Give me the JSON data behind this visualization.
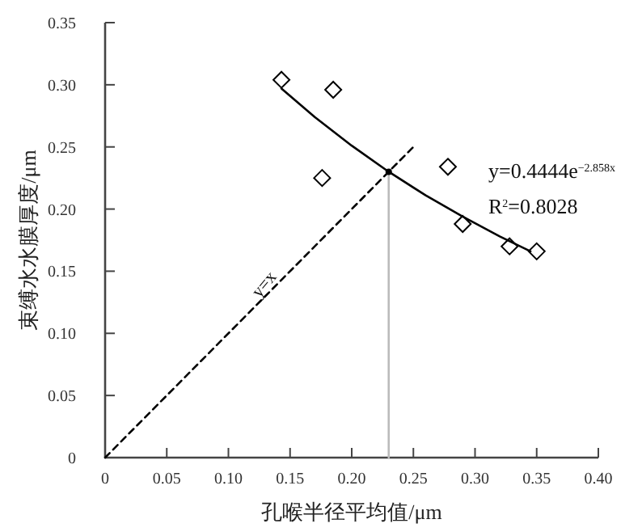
{
  "chart_data": {
    "type": "scatter",
    "xlabel": "孔喉半径平均值/μm",
    "ylabel": "束缚水水膜厚度/μm",
    "xlim": [
      0,
      0.4
    ],
    "xticks": [
      0,
      0.05,
      {
        "value": 0.1,
        "label": "0.10"
      },
      0.15,
      {
        "value": 0.2,
        "label": "0.20"
      },
      0.25,
      {
        "value": 0.3,
        "label": "0.30"
      },
      0.35,
      {
        "value": 0.4,
        "label": "0.40"
      }
    ],
    "ylim": [
      0,
      0.35
    ],
    "yticks": [
      0,
      0.05,
      {
        "value": 0.1,
        "label": "0.10"
      },
      0.15,
      {
        "value": 0.2,
        "label": "0.20"
      },
      0.25,
      {
        "value": 0.3,
        "label": "0.30"
      },
      0.35
    ],
    "grid": false,
    "series": [
      {
        "marker": "diamond",
        "color": "#000000",
        "x": [
          0.143,
          0.176,
          0.185,
          0.278,
          0.29,
          0.328,
          0.35
        ],
        "values": [
          0.304,
          0.225,
          0.296,
          0.234,
          0.188,
          0.17,
          0.166
        ]
      },
      {
        "type": "line",
        "line_style": "solid",
        "color": "#000000",
        "x": [
          0.143,
          0.17,
          0.2,
          0.23,
          0.26,
          0.29,
          0.32,
          0.345
        ],
        "values": [
          0.297,
          0.274,
          0.251,
          0.23,
          0.211,
          0.194,
          0.178,
          0.166
        ]
      },
      {
        "type": "line",
        "line_style": "dashed",
        "color": "#000000",
        "x": [
          0,
          0.25
        ],
        "values": [
          0,
          0.25
        ]
      },
      {
        "type": "line",
        "line_style": "solid",
        "color": "#bbbbbb",
        "x": [
          0.23,
          0.23
        ],
        "values": [
          0.23,
          0
        ]
      },
      {
        "type": "scatter",
        "marker": "circle",
        "color": "#000000",
        "x": [
          0.23
        ],
        "values": [
          0.23
        ]
      }
    ],
    "annotations": [
      {
        "text": "y=x",
        "x": 0.125,
        "y": 0.128
      },
      "y=0.4444e$^{−2.858x}$",
      "R$^{2}$=0.8028"
    ]
  }
}
